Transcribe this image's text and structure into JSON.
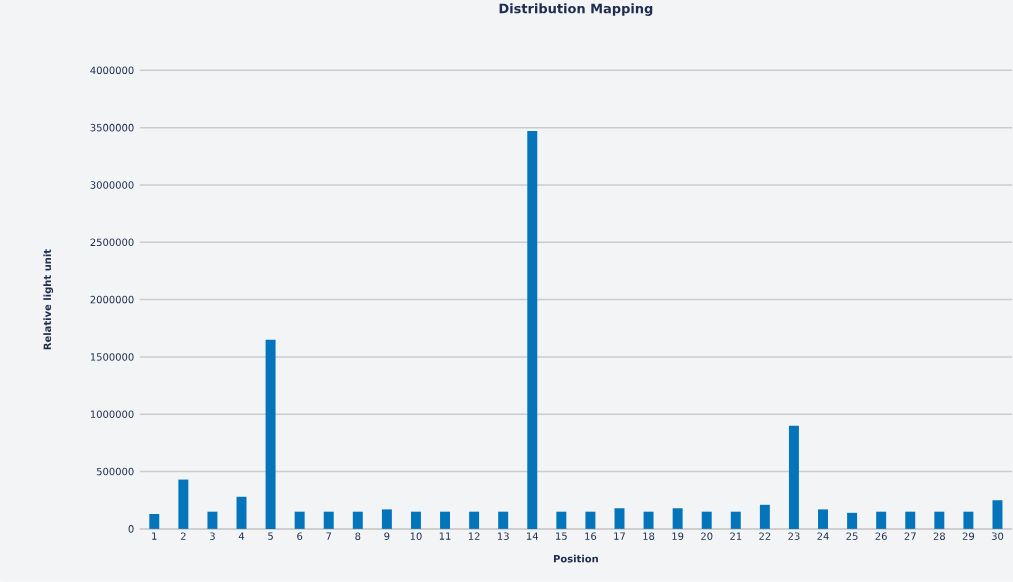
{
  "chart_data": {
    "type": "bar",
    "title": "Distribution Mapping",
    "xlabel": "Position",
    "ylabel": "Relative light unit",
    "categories": [
      "1",
      "2",
      "3",
      "4",
      "5",
      "6",
      "7",
      "8",
      "9",
      "10",
      "11",
      "12",
      "13",
      "14",
      "15",
      "16",
      "17",
      "18",
      "19",
      "20",
      "21",
      "22",
      "23",
      "24",
      "25",
      "26",
      "27",
      "28",
      "29",
      "30"
    ],
    "values": [
      130000,
      430000,
      150000,
      280000,
      1650000,
      150000,
      150000,
      150000,
      170000,
      150000,
      150000,
      150000,
      150000,
      3470000,
      150000,
      150000,
      180000,
      150000,
      180000,
      150000,
      150000,
      210000,
      900000,
      170000,
      140000,
      150000,
      150000,
      150000,
      150000,
      250000
    ],
    "color": "#0575bb",
    "ylim": [
      0,
      4000000
    ],
    "yticks": [
      0,
      500000,
      1000000,
      1500000,
      2000000,
      2500000,
      3000000,
      3500000,
      4000000
    ],
    "grid": "y"
  }
}
